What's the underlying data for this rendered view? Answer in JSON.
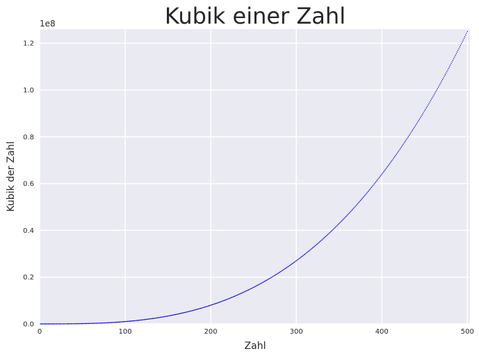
{
  "chart_data": {
    "type": "scatter",
    "title": "Kubik einer Zahl",
    "xlabel": "Zahl",
    "ylabel": "Kubik der Zahl",
    "x_ticks": [
      0,
      100,
      200,
      300,
      400,
      500
    ],
    "y_ticks": [
      0.0,
      0.2,
      0.4,
      0.6,
      0.8,
      1.0,
      1.2
    ],
    "y_offset_text": "1e8",
    "xlim": [
      0,
      503
    ],
    "ylim": [
      0,
      126000000
    ],
    "grid": true,
    "background": "#eaeaf2",
    "series": [
      {
        "function": "cube",
        "x_start": 1,
        "x_end": 500,
        "x_step": 1,
        "color": "#0000ff",
        "marker": "point"
      }
    ]
  }
}
